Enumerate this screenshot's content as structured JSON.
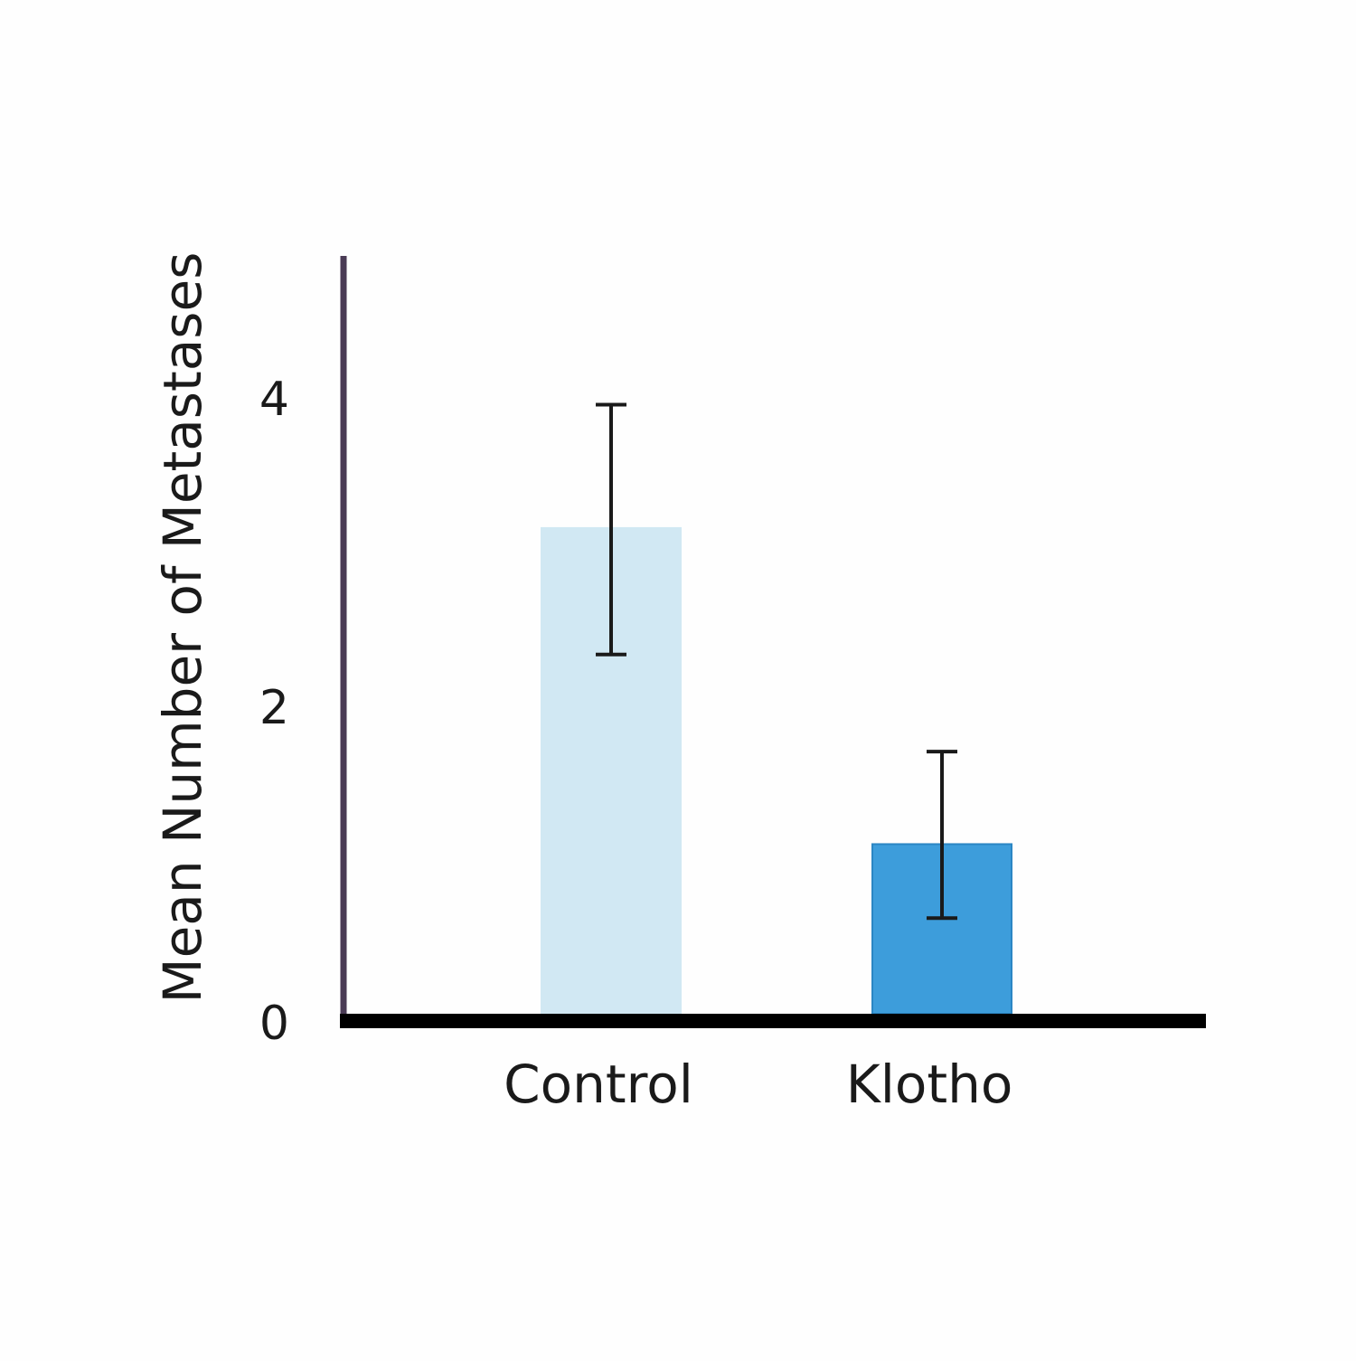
{
  "chart_data": {
    "type": "bar",
    "title": "",
    "xlabel": "",
    "ylabel": "Mean Number of Metastases",
    "categories": [
      "Control",
      "Klotho"
    ],
    "values": [
      3.15,
      1.1
    ],
    "error": [
      {
        "low": 2.33,
        "high": 3.95
      },
      {
        "low": 0.62,
        "high": 1.7
      }
    ],
    "ylim": [
      0,
      4.9
    ],
    "yticks": [
      {
        "value": 0,
        "label": "0"
      },
      {
        "value": 2,
        "label": "2"
      },
      {
        "value": 4,
        "label": "4"
      }
    ],
    "grid": false,
    "legend": "none",
    "colors": {
      "bars": [
        "#d1e8f3",
        "#3d9ddb"
      ],
      "bar_strokes": [
        "#d1e8f3",
        "#2b86c4"
      ],
      "error_bar": "#1a1a1a",
      "x_axis": "#000000",
      "y_axis": "#4a3b55"
    }
  }
}
